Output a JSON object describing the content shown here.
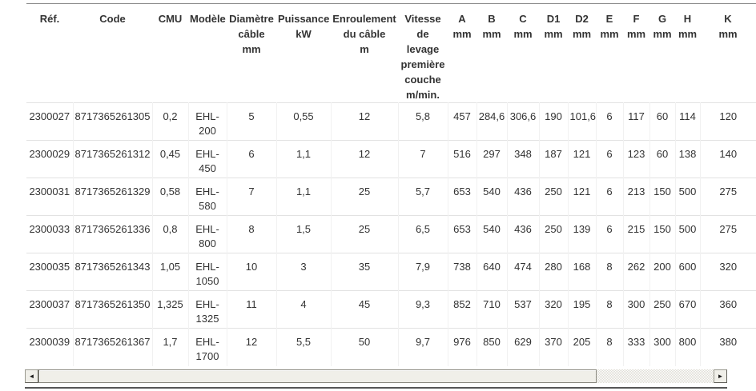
{
  "table": {
    "headers": [
      "Réf.",
      "Code",
      "CMU",
      "Modèle",
      "Diamètre\ncâble\nmm",
      "Puissance\nkW",
      "Enroulement\ndu câble\nm",
      "Vitesse\nde\nlevage\npremière\ncouche\nm/min.",
      "A\nmm",
      "B\nmm",
      "C\nmm",
      "D1\nmm",
      "D2\nmm",
      "E\nmm",
      "F\nmm",
      "G\nmm",
      "H\nmm",
      "K\nmm"
    ],
    "rows": [
      [
        "2300027",
        "8717365261305",
        "0,2",
        "EHL-\n200",
        "5",
        "0,55",
        "12",
        "5,8",
        "457",
        "284,6",
        "306,6",
        "190",
        "101,6",
        "6",
        "117",
        "60",
        "114",
        "120"
      ],
      [
        "2300029",
        "8717365261312",
        "0,45",
        "EHL-\n450",
        "6",
        "1,1",
        "12",
        "7",
        "516",
        "297",
        "348",
        "187",
        "121",
        "6",
        "123",
        "60",
        "138",
        "140"
      ],
      [
        "2300031",
        "8717365261329",
        "0,58",
        "EHL-\n580",
        "7",
        "1,1",
        "25",
        "5,7",
        "653",
        "540",
        "436",
        "250",
        "121",
        "6",
        "213",
        "150",
        "500",
        "275"
      ],
      [
        "2300033",
        "8717365261336",
        "0,8",
        "EHL-\n800",
        "8",
        "1,5",
        "25",
        "6,5",
        "653",
        "540",
        "436",
        "250",
        "139",
        "6",
        "215",
        "150",
        "500",
        "275"
      ],
      [
        "2300035",
        "8717365261343",
        "1,05",
        "EHL-\n1050",
        "10",
        "3",
        "35",
        "7,9",
        "738",
        "640",
        "474",
        "280",
        "168",
        "8",
        "262",
        "200",
        "600",
        "320"
      ],
      [
        "2300037",
        "8717365261350",
        "1,325",
        "EHL-\n1325",
        "11",
        "4",
        "45",
        "9,3",
        "852",
        "710",
        "537",
        "320",
        "195",
        "8",
        "300",
        "250",
        "670",
        "360"
      ],
      [
        "2300039",
        "8717365261367",
        "1,7",
        "EHL-\n1700",
        "12",
        "5,5",
        "50",
        "9,7",
        "976",
        "850",
        "629",
        "370",
        "205",
        "8",
        "333",
        "300",
        "800",
        "380"
      ]
    ]
  },
  "scrollbar": {
    "left_arrow_icon": "◄",
    "right_arrow_icon": "►"
  },
  "colors": {
    "text": "#333333",
    "row_border": "#e2e2e2",
    "cell_border": "#f1f1f1",
    "table_top_border": "#8c8c8c",
    "bottom_rule": "#565656",
    "scrollbar_face": "#f0efe9",
    "scrollbar_track_light": "#ffffff",
    "scrollbar_track_dark": "#dedcd4"
  }
}
